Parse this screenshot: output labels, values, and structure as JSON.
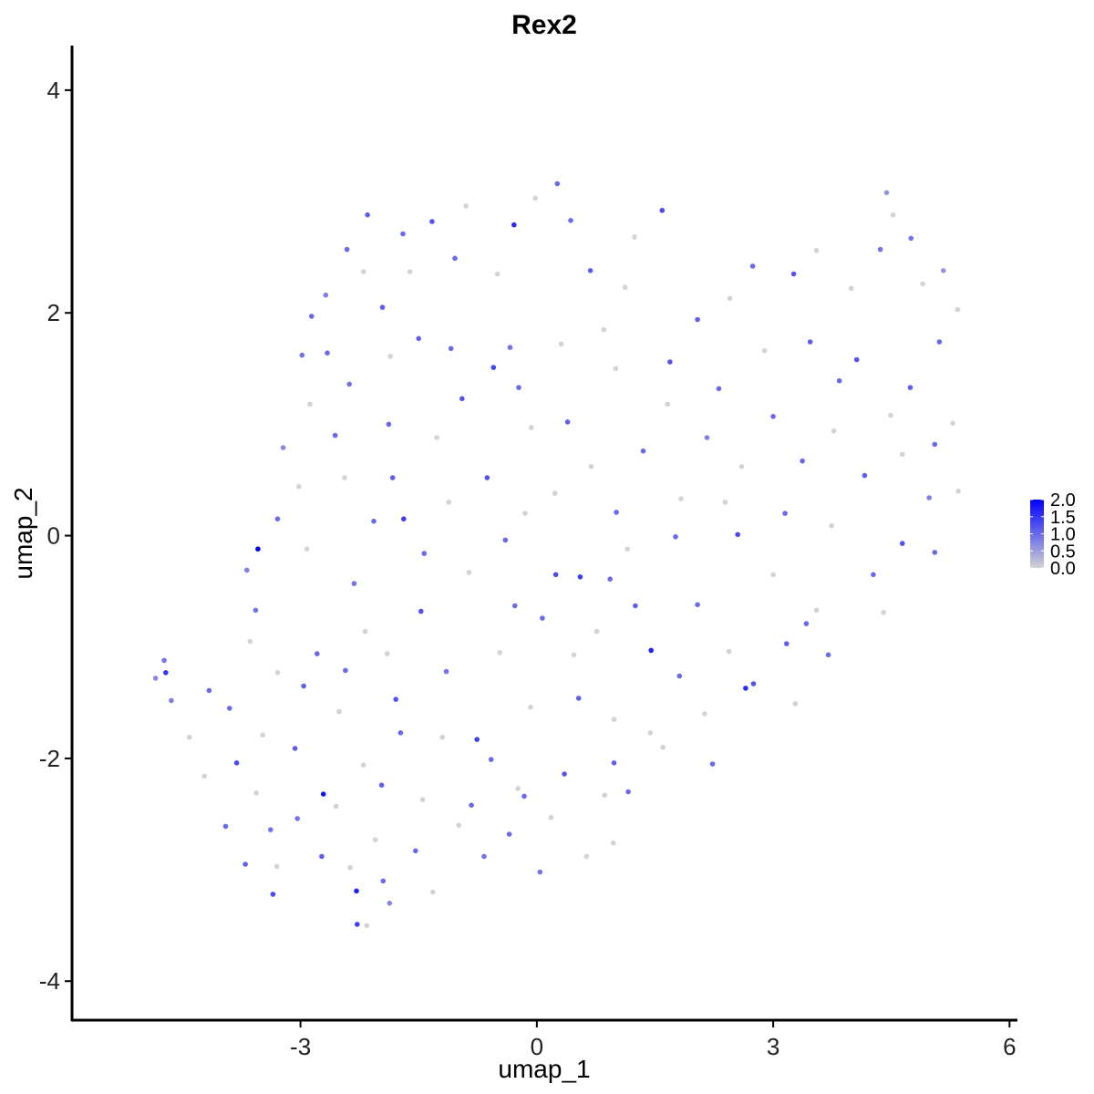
{
  "chart_data": {
    "type": "scatter",
    "title": "Rex2",
    "xlabel": "umap_1",
    "ylabel": "umap_2",
    "xlim": [
      -5.9,
      6.1
    ],
    "ylim": [
      -4.35,
      4.4
    ],
    "xticks": [
      -3,
      0,
      3,
      6
    ],
    "xtick_labels": [
      "-3",
      "0",
      "3",
      "6"
    ],
    "yticks": [
      -4,
      -2,
      0,
      2,
      4
    ],
    "ytick_labels": [
      "-4",
      "-2",
      "0",
      "2",
      "4"
    ],
    "grid": false,
    "legend_position": "right",
    "color_scale": {
      "low": "#d3d3d3",
      "high": "#0000ff",
      "min": 0.0,
      "max": 2.0,
      "breaks": [
        0.0,
        0.5,
        1.0,
        1.5,
        2.0
      ],
      "break_labels": [
        "0.0",
        "0.5",
        "1.0",
        "1.5",
        "2.0"
      ]
    },
    "points": [
      {
        "x": 0.26,
        "y": 3.16,
        "value": 1.0
      },
      {
        "x": 1.59,
        "y": 2.92,
        "value": 1.3
      },
      {
        "x": -0.29,
        "y": 2.79,
        "value": 1.6
      },
      {
        "x": -1.33,
        "y": 2.82,
        "value": 1.2
      },
      {
        "x": -2.15,
        "y": 2.88,
        "value": 1.1
      },
      {
        "x": -0.02,
        "y": 3.03,
        "value": 0.0
      },
      {
        "x": 4.44,
        "y": 3.08,
        "value": 0.6
      },
      {
        "x": 4.52,
        "y": 2.88,
        "value": 0.0
      },
      {
        "x": 4.75,
        "y": 2.67,
        "value": 0.9
      },
      {
        "x": 5.16,
        "y": 2.38,
        "value": 0.6
      },
      {
        "x": 5.34,
        "y": 2.03,
        "value": 0.0
      },
      {
        "x": 3.55,
        "y": 2.56,
        "value": 0.0
      },
      {
        "x": 2.74,
        "y": 2.42,
        "value": 1.0
      },
      {
        "x": 3.26,
        "y": 2.35,
        "value": 1.2
      },
      {
        "x": 2.04,
        "y": 1.94,
        "value": 1.1
      },
      {
        "x": 0.85,
        "y": 1.85,
        "value": 0.0
      },
      {
        "x": -2.41,
        "y": 2.57,
        "value": 1.0
      },
      {
        "x": -2.68,
        "y": 2.16,
        "value": 0.8
      },
      {
        "x": -2.86,
        "y": 1.97,
        "value": 1.0
      },
      {
        "x": -2.98,
        "y": 1.62,
        "value": 0.9
      },
      {
        "x": -2.88,
        "y": 1.18,
        "value": 0.0
      },
      {
        "x": -3.22,
        "y": 0.79,
        "value": 0.7
      },
      {
        "x": -3.29,
        "y": 0.15,
        "value": 1.0
      },
      {
        "x": -3.54,
        "y": -0.12,
        "value": 2.0
      },
      {
        "x": -3.68,
        "y": -0.31,
        "value": 0.8
      },
      {
        "x": -3.57,
        "y": -0.67,
        "value": 0.9
      },
      {
        "x": -4.73,
        "y": -1.12,
        "value": 0.9
      },
      {
        "x": -4.71,
        "y": -1.23,
        "value": 1.5
      },
      {
        "x": -4.84,
        "y": -1.28,
        "value": 0.7
      },
      {
        "x": -4.64,
        "y": -1.48,
        "value": 0.8
      },
      {
        "x": -4.41,
        "y": -1.81,
        "value": 0.0
      },
      {
        "x": -4.16,
        "y": -1.39,
        "value": 1.0
      },
      {
        "x": -4.22,
        "y": -2.16,
        "value": 0.0
      },
      {
        "x": -3.81,
        "y": -2.04,
        "value": 1.3
      },
      {
        "x": -3.38,
        "y": -2.64,
        "value": 0.9
      },
      {
        "x": -2.71,
        "y": -2.32,
        "value": 1.8
      },
      {
        "x": -3.35,
        "y": -3.22,
        "value": 1.3
      },
      {
        "x": -2.29,
        "y": -3.19,
        "value": 1.7
      },
      {
        "x": -2.28,
        "y": -3.49,
        "value": 1.4
      },
      {
        "x": -2.16,
        "y": -3.5,
        "value": 0.0
      },
      {
        "x": -1.87,
        "y": -3.3,
        "value": 0.7
      },
      {
        "x": -1.32,
        "y": -3.2,
        "value": 0.0
      },
      {
        "x": -0.67,
        "y": -2.88,
        "value": 0.9
      },
      {
        "x": 0.04,
        "y": -3.02,
        "value": 0.9
      },
      {
        "x": 0.63,
        "y": -2.88,
        "value": 0.0
      },
      {
        "x": 0.97,
        "y": -2.76,
        "value": 0.0
      },
      {
        "x": -0.76,
        "y": -1.83,
        "value": 1.4
      },
      {
        "x": 1.45,
        "y": -1.03,
        "value": 1.7
      },
      {
        "x": 2.65,
        "y": -1.37,
        "value": 1.6
      },
      {
        "x": 3.17,
        "y": -0.97,
        "value": 1.1
      },
      {
        "x": 3.55,
        "y": -0.67,
        "value": 0.0
      },
      {
        "x": 4.27,
        "y": -0.35,
        "value": 1.0
      },
      {
        "x": 4.64,
        "y": -0.07,
        "value": 1.2
      },
      {
        "x": 4.98,
        "y": 0.34,
        "value": 0.8
      },
      {
        "x": 5.05,
        "y": 0.82,
        "value": 1.0
      },
      {
        "x": 5.28,
        "y": 1.01,
        "value": 0.0
      },
      {
        "x": 4.74,
        "y": 1.33,
        "value": 1.1
      },
      {
        "x": 4.06,
        "y": 1.58,
        "value": 1.2
      },
      {
        "x": 3.77,
        "y": 0.94,
        "value": 0.0
      },
      {
        "x": 3.37,
        "y": 0.67,
        "value": 1.0
      },
      {
        "x": 2.6,
        "y": 0.62,
        "value": 0.0
      },
      {
        "x": 2.16,
        "y": 0.88,
        "value": 0.8
      },
      {
        "x": 1.69,
        "y": 1.56,
        "value": 1.2
      },
      {
        "x": 1.0,
        "y": 1.5,
        "value": 0.0
      },
      {
        "x": 0.39,
        "y": 1.02,
        "value": 1.1
      },
      {
        "x": -0.07,
        "y": 0.97,
        "value": 0.0
      },
      {
        "x": -0.55,
        "y": 1.51,
        "value": 1.3
      },
      {
        "x": -0.34,
        "y": 1.69,
        "value": 0.9
      },
      {
        "x": -1.09,
        "y": 1.68,
        "value": 1.0
      },
      {
        "x": -1.5,
        "y": 1.77,
        "value": 1.1
      },
      {
        "x": -1.86,
        "y": 1.61,
        "value": 0.0
      },
      {
        "x": -2.38,
        "y": 1.36,
        "value": 0.9
      },
      {
        "x": -1.88,
        "y": 1.0,
        "value": 1.0
      },
      {
        "x": -2.44,
        "y": 0.52,
        "value": 0.0
      },
      {
        "x": -2.07,
        "y": 0.13,
        "value": 1.0
      },
      {
        "x": -1.69,
        "y": 0.15,
        "value": 1.4
      },
      {
        "x": -1.12,
        "y": 0.3,
        "value": 0.0
      },
      {
        "x": -0.63,
        "y": 0.52,
        "value": 1.2
      },
      {
        "x": -0.15,
        "y": 0.2,
        "value": 0.0
      },
      {
        "x": 0.24,
        "y": -0.35,
        "value": 1.3
      },
      {
        "x": 0.55,
        "y": -0.37,
        "value": 1.4
      },
      {
        "x": 0.93,
        "y": -0.39,
        "value": 1.0
      },
      {
        "x": 1.15,
        "y": -0.12,
        "value": 0.0
      },
      {
        "x": 1.76,
        "y": -0.01,
        "value": 1.0
      },
      {
        "x": 2.55,
        "y": 0.01,
        "value": 1.3
      },
      {
        "x": 3.0,
        "y": -0.35,
        "value": 0.0
      },
      {
        "x": 3.42,
        "y": -0.79,
        "value": 1.0
      },
      {
        "x": 2.75,
        "y": -1.33,
        "value": 1.2
      },
      {
        "x": 2.13,
        "y": -1.6,
        "value": 0.0
      },
      {
        "x": 1.44,
        "y": -1.77,
        "value": 0.0
      },
      {
        "x": 0.98,
        "y": -2.04,
        "value": 1.1
      },
      {
        "x": 0.35,
        "y": -2.14,
        "value": 1.2
      },
      {
        "x": -0.24,
        "y": -2.27,
        "value": 0.0
      },
      {
        "x": -0.83,
        "y": -2.42,
        "value": 1.0
      },
      {
        "x": -1.45,
        "y": -2.37,
        "value": 0.0
      },
      {
        "x": -1.97,
        "y": -2.24,
        "value": 1.1
      },
      {
        "x": -2.55,
        "y": -2.43,
        "value": 0.0
      },
      {
        "x": -3.04,
        "y": -2.54,
        "value": 0.9
      },
      {
        "x": -3.56,
        "y": -2.31,
        "value": 0.0
      },
      {
        "x": -3.95,
        "y": -2.61,
        "value": 1.0
      },
      {
        "x": -3.07,
        "y": -1.91,
        "value": 1.1
      },
      {
        "x": -2.51,
        "y": -1.58,
        "value": 0.0
      },
      {
        "x": -1.79,
        "y": -1.47,
        "value": 1.2
      },
      {
        "x": -1.15,
        "y": -1.22,
        "value": 0.9
      },
      {
        "x": -0.47,
        "y": -1.05,
        "value": 0.0
      },
      {
        "x": 0.07,
        "y": -0.74,
        "value": 1.0
      },
      {
        "x": 0.76,
        "y": -0.86,
        "value": 0.0
      },
      {
        "x": 1.25,
        "y": -0.63,
        "value": 1.1
      },
      {
        "x": -0.86,
        "y": -0.33,
        "value": 0.0
      },
      {
        "x": -1.47,
        "y": -0.68,
        "value": 1.2
      },
      {
        "x": -2.18,
        "y": -0.86,
        "value": 0.0
      },
      {
        "x": -2.79,
        "y": -1.06,
        "value": 1.0
      },
      {
        "x": -3.29,
        "y": -1.23,
        "value": 0.0
      },
      {
        "x": -2.32,
        "y": -0.43,
        "value": 0.9
      },
      {
        "x": -2.92,
        "y": -0.12,
        "value": 0.0
      },
      {
        "x": -1.83,
        "y": 0.52,
        "value": 1.1
      },
      {
        "x": -1.27,
        "y": 0.88,
        "value": 0.0
      },
      {
        "x": -0.95,
        "y": 1.23,
        "value": 1.2
      },
      {
        "x": -0.23,
        "y": 1.33,
        "value": 1.0
      },
      {
        "x": 0.31,
        "y": 1.72,
        "value": 0.0
      },
      {
        "x": 0.68,
        "y": 2.38,
        "value": 1.1
      },
      {
        "x": -0.5,
        "y": 2.35,
        "value": 0.0
      },
      {
        "x": -1.04,
        "y": 2.49,
        "value": 1.0
      },
      {
        "x": -1.61,
        "y": 2.37,
        "value": 0.0
      },
      {
        "x": -1.96,
        "y": 2.05,
        "value": 1.1
      },
      {
        "x": 1.12,
        "y": 2.23,
        "value": 0.0
      },
      {
        "x": 1.66,
        "y": 1.18,
        "value": 0.0
      },
      {
        "x": 2.31,
        "y": 1.32,
        "value": 1.0
      },
      {
        "x": 2.89,
        "y": 1.66,
        "value": 0.0
      },
      {
        "x": 3.47,
        "y": 1.74,
        "value": 1.1
      },
      {
        "x": 3.99,
        "y": 2.22,
        "value": 0.0
      },
      {
        "x": 4.36,
        "y": 2.57,
        "value": 0.9
      },
      {
        "x": 4.9,
        "y": 2.26,
        "value": 0.0
      },
      {
        "x": 5.11,
        "y": 1.74,
        "value": 1.0
      },
      {
        "x": 4.49,
        "y": 1.08,
        "value": 0.0
      },
      {
        "x": 4.16,
        "y": 0.54,
        "value": 1.1
      },
      {
        "x": 3.74,
        "y": 0.09,
        "value": 0.0
      },
      {
        "x": 3.15,
        "y": 0.2,
        "value": 1.0
      },
      {
        "x": 1.83,
        "y": 0.33,
        "value": 0.0
      },
      {
        "x": 1.35,
        "y": 0.76,
        "value": 1.0
      },
      {
        "x": 0.69,
        "y": 0.62,
        "value": 0.0
      },
      {
        "x": 0.53,
        "y": -1.46,
        "value": 1.1
      },
      {
        "x": 0.98,
        "y": -1.65,
        "value": 0.0
      },
      {
        "x": 1.81,
        "y": -1.26,
        "value": 1.0
      },
      {
        "x": -0.08,
        "y": -1.54,
        "value": 0.0
      },
      {
        "x": -0.58,
        "y": -2.01,
        "value": 1.0
      },
      {
        "x": -1.2,
        "y": -1.81,
        "value": 0.0
      },
      {
        "x": -1.73,
        "y": -1.77,
        "value": 1.0
      },
      {
        "x": -2.2,
        "y": -2.06,
        "value": 0.0
      },
      {
        "x": -2.73,
        "y": -2.88,
        "value": 1.1
      },
      {
        "x": -2.05,
        "y": -2.73,
        "value": 0.0
      },
      {
        "x": -1.54,
        "y": -2.83,
        "value": 1.0
      },
      {
        "x": -0.99,
        "y": -2.6,
        "value": 0.0
      },
      {
        "x": -0.35,
        "y": -2.68,
        "value": 1.0
      },
      {
        "x": 0.18,
        "y": -2.53,
        "value": 0.0
      },
      {
        "x": -3.9,
        "y": -1.55,
        "value": 1.0
      },
      {
        "x": -3.48,
        "y": -1.79,
        "value": 0.0
      },
      {
        "x": -2.96,
        "y": -1.35,
        "value": 1.1
      },
      {
        "x": -3.64,
        "y": -0.95,
        "value": 0.0
      },
      {
        "x": -2.56,
        "y": 0.9,
        "value": 1.0
      },
      {
        "x": -3.02,
        "y": 0.44,
        "value": 0.0
      },
      {
        "x": -2.66,
        "y": 1.64,
        "value": 1.0
      },
      {
        "x": -2.2,
        "y": 2.37,
        "value": 0.0
      },
      {
        "x": -1.7,
        "y": 2.71,
        "value": 1.0
      },
      {
        "x": -0.9,
        "y": 2.96,
        "value": 0.0
      },
      {
        "x": 0.43,
        "y": 2.83,
        "value": 1.0
      },
      {
        "x": 1.24,
        "y": 2.68,
        "value": 0.0
      },
      {
        "x": 2.45,
        "y": 2.13,
        "value": 0.0
      },
      {
        "x": 3.84,
        "y": 1.39,
        "value": 1.0
      },
      {
        "x": 4.64,
        "y": 0.73,
        "value": 0.0
      },
      {
        "x": 3.0,
        "y": 1.07,
        "value": 1.0
      },
      {
        "x": 2.39,
        "y": 0.3,
        "value": 0.0
      },
      {
        "x": 2.04,
        "y": -0.62,
        "value": 1.0
      },
      {
        "x": 2.44,
        "y": -1.04,
        "value": 0.0
      },
      {
        "x": 1.01,
        "y": 0.21,
        "value": 1.0
      },
      {
        "x": 0.23,
        "y": 0.38,
        "value": 0.0
      },
      {
        "x": -0.4,
        "y": -0.04,
        "value": 1.0
      },
      {
        "x": 0.47,
        "y": -1.07,
        "value": 0.0
      },
      {
        "x": -0.28,
        "y": -0.63,
        "value": 1.0
      },
      {
        "x": -1.9,
        "y": -1.06,
        "value": 0.0
      },
      {
        "x": -1.43,
        "y": -0.16,
        "value": 1.0
      },
      {
        "x": -2.43,
        "y": -1.21,
        "value": 1.0
      },
      {
        "x": -3.3,
        "y": -2.97,
        "value": 0.0
      },
      {
        "x": -3.7,
        "y": -2.95,
        "value": 1.1
      },
      {
        "x": -2.37,
        "y": -2.98,
        "value": 0.0
      },
      {
        "x": -1.95,
        "y": -3.1,
        "value": 1.0
      },
      {
        "x": -0.16,
        "y": -2.34,
        "value": 1.0
      },
      {
        "x": 0.86,
        "y": -2.33,
        "value": 0.0
      },
      {
        "x": 1.16,
        "y": -2.3,
        "value": 1.0
      },
      {
        "x": 1.6,
        "y": -1.9,
        "value": 0.0
      },
      {
        "x": 2.23,
        "y": -2.05,
        "value": 1.0
      },
      {
        "x": 3.28,
        "y": -1.51,
        "value": 0.0
      },
      {
        "x": 3.7,
        "y": -1.07,
        "value": 1.0
      },
      {
        "x": 4.4,
        "y": -0.69,
        "value": 0.0
      },
      {
        "x": 5.05,
        "y": -0.15,
        "value": 1.0
      },
      {
        "x": 5.35,
        "y": 0.4,
        "value": 0.0
      }
    ]
  }
}
